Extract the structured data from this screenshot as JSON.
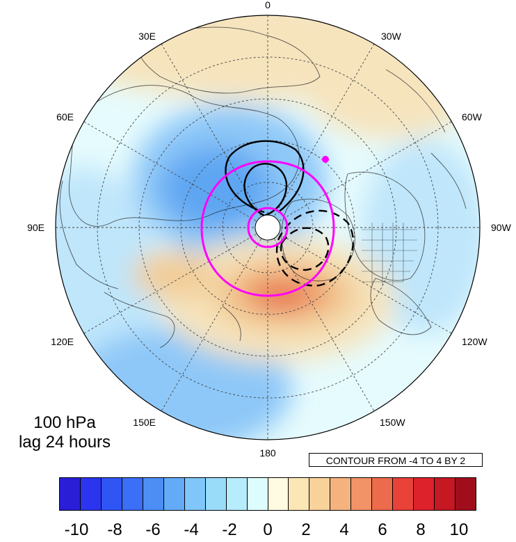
{
  "map": {
    "projection": "north-polar-stereographic",
    "longitude_labels": [
      "0",
      "30W",
      "60W",
      "90W",
      "120W",
      "150W",
      "180",
      "150E",
      "120E",
      "90E",
      "60E",
      "30E"
    ],
    "level_label": "100 hPa",
    "lag_label": "lag 24 hours",
    "contour_info": "CONTOUR FROM -4 TO 4 BY 2",
    "shading_colors": [
      "#3a8ae0",
      "#5ea6f2",
      "#8ec8f8",
      "#bfe6fb",
      "#f6e4bd",
      "#f2cd98",
      "#ef9c6a",
      "#e56a4b"
    ],
    "contour_color": "#000000",
    "overlay_color": "#ff00ff"
  },
  "colorbar": {
    "colors": [
      "#2a1fd6",
      "#2b35f0",
      "#2f55f5",
      "#3a6ff6",
      "#4d8ef5",
      "#63abf6",
      "#80c6f8",
      "#99dcfa",
      "#b6ecfb",
      "#dcfcfd",
      "#fefbe2",
      "#fbe6b5",
      "#f8d29a",
      "#f4b37e",
      "#f19367",
      "#ec6b4c",
      "#e84239",
      "#de222c",
      "#c51823",
      "#a00e1c"
    ],
    "tick_labels": [
      "-10",
      "-8",
      "-6",
      "-4",
      "-2",
      "0",
      "2",
      "4",
      "6",
      "8",
      "10"
    ]
  }
}
